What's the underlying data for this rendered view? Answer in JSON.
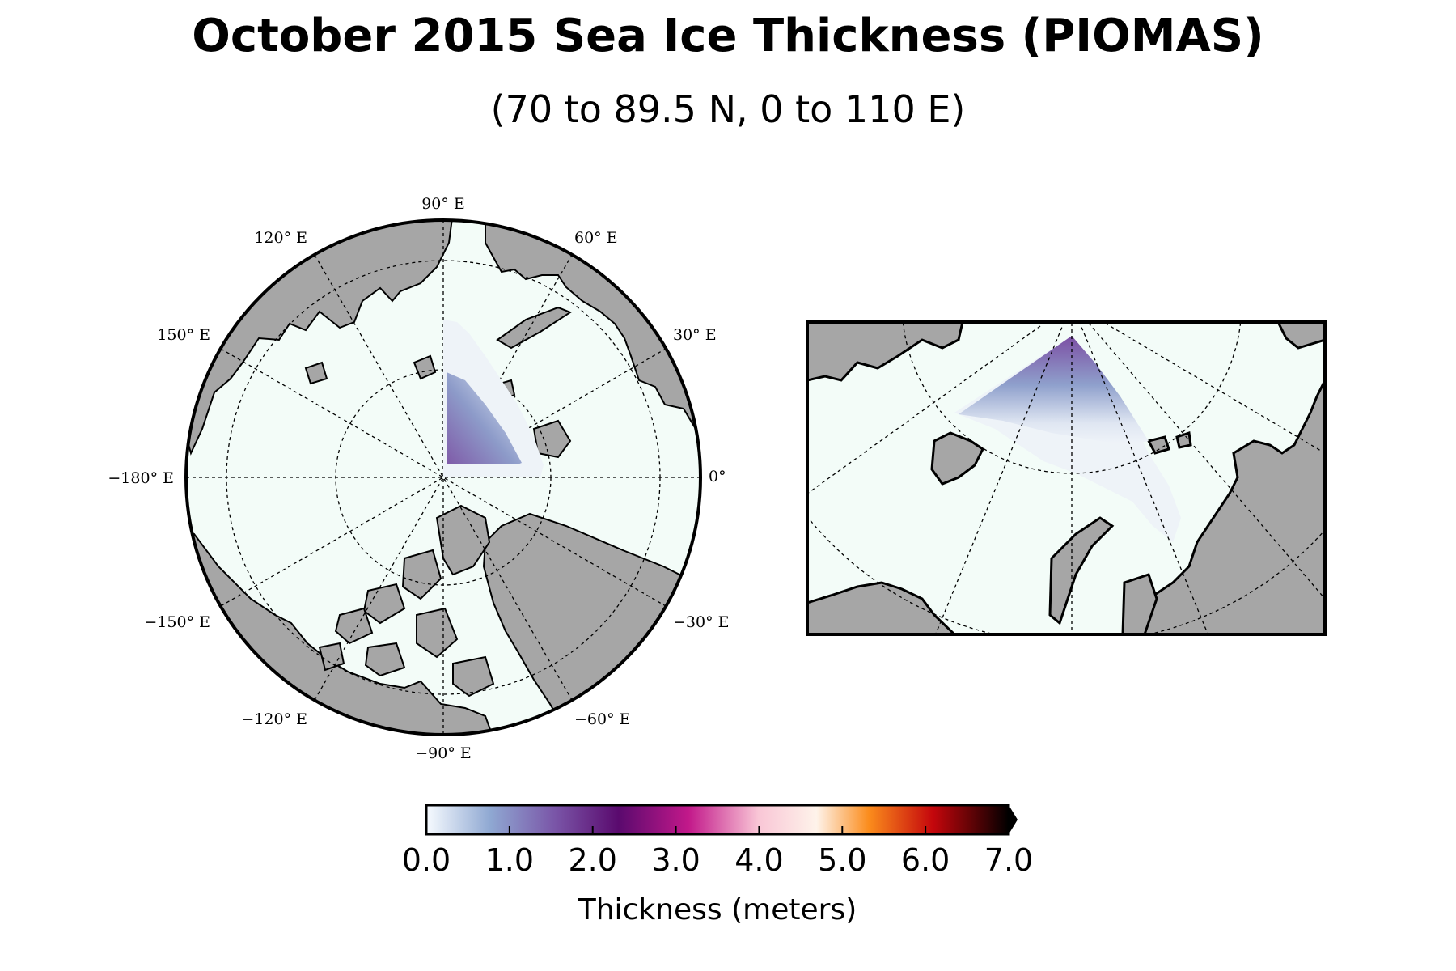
{
  "title": "October 2015 Sea Ice Thickness (PIOMAS)",
  "subtitle": "(70 to 89.5 N, 0 to 110 E)",
  "colors": {
    "land": "#a6a6a6",
    "ocean": "#f3fcf8",
    "ice_low": "#e8eef7",
    "ice_high": "#8a64ad",
    "coast": "#000000"
  },
  "chart_data": {
    "type": "heatmap",
    "title": "October 2015 Sea Ice Thickness (PIOMAS)",
    "subtitle": "(70 to 89.5 N, 0 to 110 E)",
    "region": {
      "lat_range": [
        70,
        89.5
      ],
      "lon_range": [
        0,
        110
      ]
    },
    "colorbar": {
      "label": "Thickness (meters)",
      "min": 0.0,
      "max": 7.0,
      "extend": "max",
      "ticks": [
        "0.0",
        "1.0",
        "2.0",
        "3.0",
        "4.0",
        "5.0",
        "6.0",
        "7.0"
      ],
      "stops": [
        "#f7fbff",
        "#8fa8d2",
        "#7a56a8",
        "#5a0a6e",
        "#c2188a",
        "#f9c6d6",
        "#fef3ea",
        "#fb8c1c",
        "#c4060c",
        "#000000"
      ]
    },
    "polar_map": {
      "longitude_labels": [
        "90° E",
        "60° E",
        "30° E",
        "0°",
        "−30° E",
        "−60° E",
        "−90° E",
        "−120° E",
        "−150° E",
        "−180° E",
        "150° E",
        "120° E"
      ],
      "parallels_deg": [
        80,
        70,
        60
      ]
    },
    "estimated_thickness_m": {
      "near_pole": 1.9,
      "mid_region": 1.3,
      "southern_edge": 0.2
    }
  }
}
